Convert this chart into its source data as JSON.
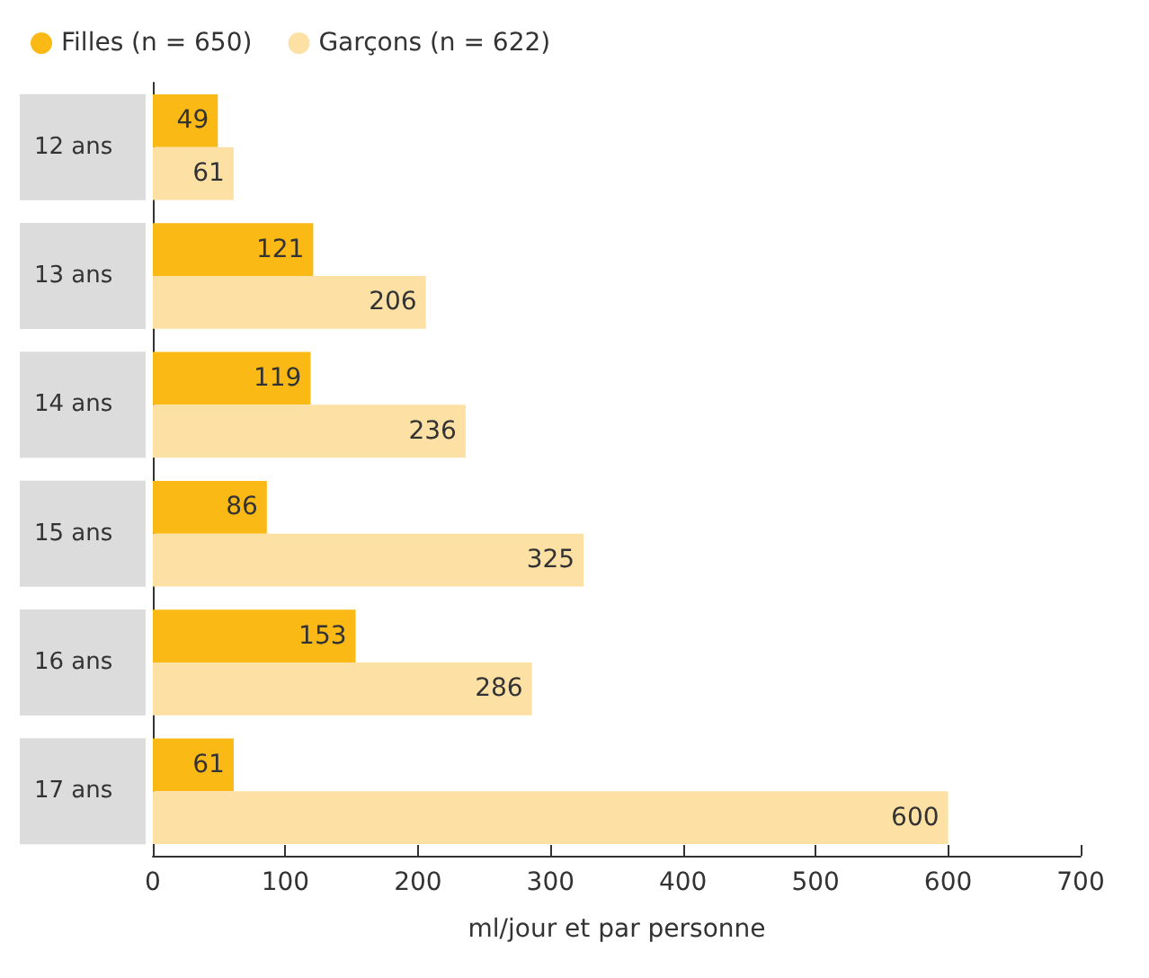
{
  "chart_data": {
    "type": "bar",
    "orientation": "horizontal",
    "xlabel": "ml/jour et par personne",
    "categories": [
      "12 ans",
      "13 ans",
      "14 ans",
      "15 ans",
      "16 ans",
      "17 ans"
    ],
    "series": [
      {
        "name": "Filles (n = 650)",
        "color": "#fbb916",
        "values": [
          49,
          121,
          119,
          86,
          153,
          61
        ]
      },
      {
        "name": "Garçons (n = 622)",
        "color": "#fde0a4",
        "values": [
          61,
          206,
          236,
          325,
          286,
          600
        ]
      }
    ],
    "xlim": [
      0,
      700
    ],
    "xticks": [
      0,
      100,
      200,
      300,
      400,
      500,
      600,
      700
    ],
    "grid": false,
    "legend": "top left",
    "data_labels": true
  }
}
